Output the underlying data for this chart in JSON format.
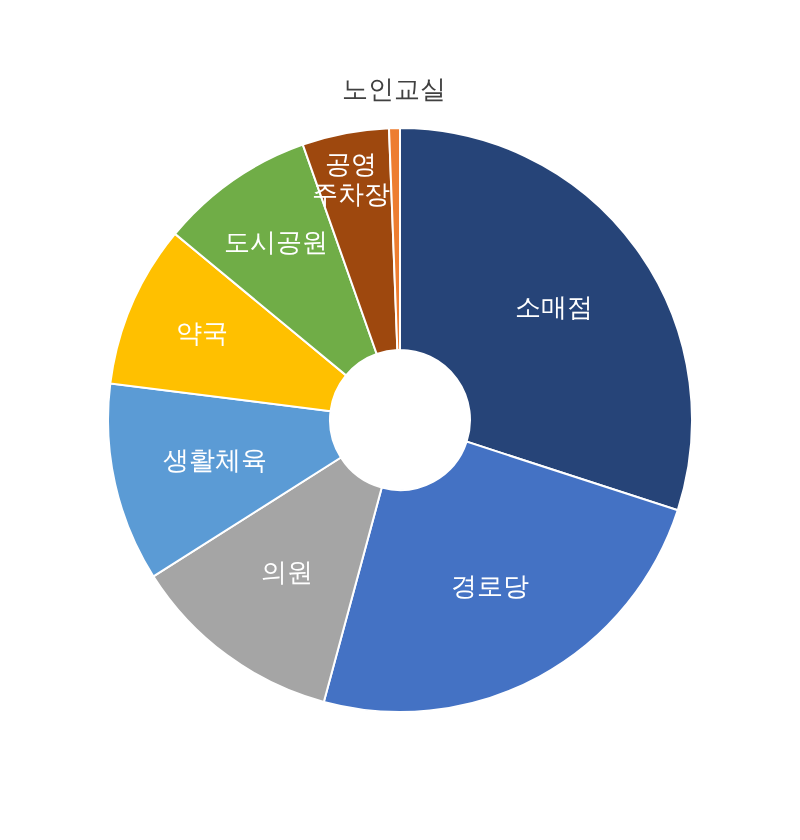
{
  "chart_data": {
    "type": "donut",
    "categories": [
      "소매점",
      "경로당",
      "의원",
      "생활체육",
      "약국",
      "도시공원",
      "공영\n주차장",
      "노인교실"
    ],
    "values": [
      30,
      24.2,
      11.8,
      11,
      9,
      8.6,
      4.8,
      0.6
    ],
    "colors": [
      "#264478",
      "#4472c4",
      "#a5a5a5",
      "#5b9bd5",
      "#ffc000",
      "#70ad47",
      "#9e480e",
      "#ed7d31"
    ]
  }
}
